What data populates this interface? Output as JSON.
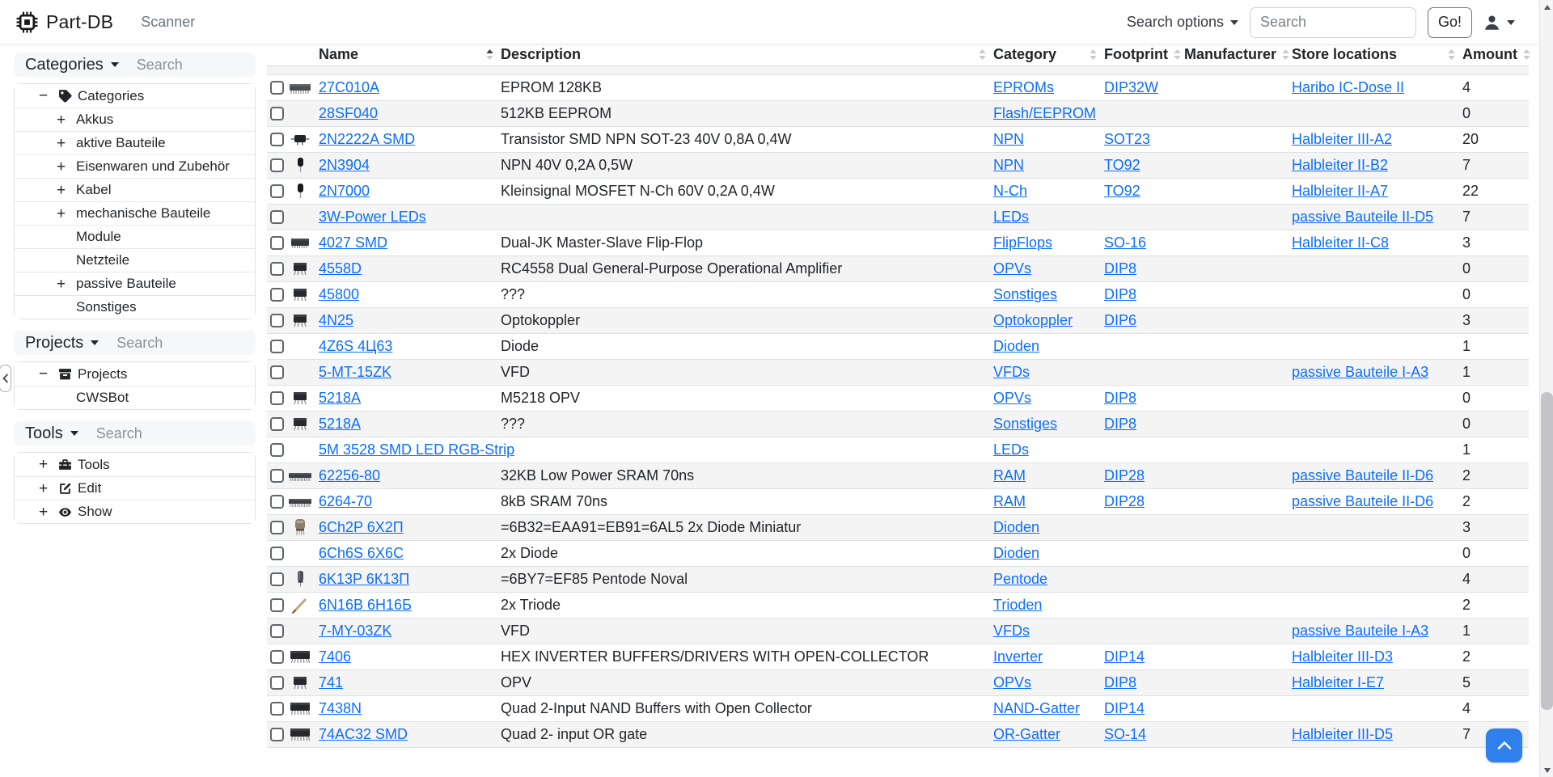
{
  "navbar": {
    "brand": "Part-DB",
    "nav_links": [
      "Scanner"
    ],
    "search_options_label": "Search options",
    "search_placeholder": "Search",
    "go_button": "Go!"
  },
  "sidebar": {
    "sections": [
      {
        "title": "Categories",
        "search_placeholder": "Search",
        "items": [
          {
            "label": "Categories",
            "depth": 0,
            "expander": "−",
            "icon": "tag-icon"
          },
          {
            "label": "Akkus",
            "depth": 1,
            "expander": "+"
          },
          {
            "label": "aktive Bauteile",
            "depth": 1,
            "expander": "+"
          },
          {
            "label": "Eisenwaren und Zubehör",
            "depth": 1,
            "expander": "+"
          },
          {
            "label": "Kabel",
            "depth": 1,
            "expander": "+"
          },
          {
            "label": "mechanische Bauteile",
            "depth": 1,
            "expander": "+"
          },
          {
            "label": "Module",
            "depth": 1,
            "expander": ""
          },
          {
            "label": "Netzteile",
            "depth": 1,
            "expander": ""
          },
          {
            "label": "passive Bauteile",
            "depth": 1,
            "expander": "+"
          },
          {
            "label": "Sonstiges",
            "depth": 1,
            "expander": ""
          }
        ]
      },
      {
        "title": "Projects",
        "search_placeholder": "Search",
        "items": [
          {
            "label": "Projects",
            "depth": 0,
            "expander": "−",
            "icon": "archive-icon"
          },
          {
            "label": "CWSBot",
            "depth": 1,
            "expander": ""
          }
        ]
      },
      {
        "title": "Tools",
        "search_placeholder": "Search",
        "items": [
          {
            "label": "Tools",
            "depth": 0,
            "expander": "+",
            "icon": "toolbox-icon"
          },
          {
            "label": "Edit",
            "depth": 0,
            "expander": "+",
            "icon": "edit-icon"
          },
          {
            "label": "Show",
            "depth": 0,
            "expander": "+",
            "icon": "eye-icon"
          }
        ]
      }
    ]
  },
  "table": {
    "columns": [
      "Name",
      "Description",
      "Category",
      "Footprint",
      "Manufacturer",
      "Store locations",
      "Amount"
    ],
    "sort": {
      "active_column": "Name",
      "direction": "ascending"
    },
    "rows": [
      {
        "image": "ic-side-icon",
        "name": "27C010A",
        "description": "EPROM 128KB",
        "category": "EPROMs",
        "footprint": "DIP32W",
        "manufacturer": "",
        "store_location": "Haribo IC-Dose II",
        "amount": "4"
      },
      {
        "image": "",
        "name": "28SF040",
        "description": "512KB EEPROM",
        "category": "Flash/EEPROM",
        "footprint": "",
        "manufacturer": "",
        "store_location": "",
        "amount": "0"
      },
      {
        "image": "sot23-icon",
        "name": "2N2222A SMD",
        "description": "Transistor SMD NPN SOT-23 40V 0,8A 0,4W",
        "category": "NPN",
        "footprint": "SOT23",
        "manufacturer": "",
        "store_location": "Halbleiter III-A2",
        "amount": "20"
      },
      {
        "image": "to92-icon",
        "name": "2N3904",
        "description": "NPN 40V 0,2A 0,5W",
        "category": "NPN",
        "footprint": "TO92",
        "manufacturer": "",
        "store_location": "Halbleiter II-B2",
        "amount": "7"
      },
      {
        "image": "to92-icon",
        "name": "2N7000",
        "description": "Kleinsignal MOSFET N-Ch 60V 0,2A 0,4W",
        "category": "N-Ch",
        "footprint": "TO92",
        "manufacturer": "",
        "store_location": "Halbleiter II-A7",
        "amount": "22"
      },
      {
        "image": "",
        "name": "3W-Power LEDs",
        "description": "",
        "category": "LEDs",
        "footprint": "",
        "manufacturer": "",
        "store_location": "passive Bauteile II-D5",
        "amount": "7"
      },
      {
        "image": "so16-icon",
        "name": "4027 SMD",
        "description": "Dual-JK Master-Slave Flip-Flop",
        "category": "FlipFlops",
        "footprint": "SO-16",
        "manufacturer": "",
        "store_location": "Halbleiter II-C8",
        "amount": "3"
      },
      {
        "image": "dip8-icon",
        "name": "4558D",
        "description": "RC4558 Dual General-Purpose Operational Amplifier",
        "category": "OPVs",
        "footprint": "DIP8",
        "manufacturer": "",
        "store_location": "",
        "amount": "0"
      },
      {
        "image": "dip8-icon",
        "name": "45800",
        "description": "???",
        "category": "Sonstiges",
        "footprint": "DIP8",
        "manufacturer": "",
        "store_location": "",
        "amount": "0"
      },
      {
        "image": "dip8-icon",
        "name": "4N25",
        "description": "Optokoppler",
        "category": "Optokoppler",
        "footprint": "DIP6",
        "manufacturer": "",
        "store_location": "",
        "amount": "3"
      },
      {
        "image": "",
        "name": "4Z6S 4Ц63",
        "description": "Diode",
        "category": "Dioden",
        "footprint": "",
        "manufacturer": "",
        "store_location": "",
        "amount": "1"
      },
      {
        "image": "",
        "name": "5-MT-15ZK",
        "description": "VFD",
        "category": "VFDs",
        "footprint": "",
        "manufacturer": "",
        "store_location": "passive Bauteile I-A3",
        "amount": "1"
      },
      {
        "image": "dip8-icon",
        "name": "5218A",
        "description": "M5218 OPV",
        "category": "OPVs",
        "footprint": "DIP8",
        "manufacturer": "",
        "store_location": "",
        "amount": "0"
      },
      {
        "image": "dip8-icon",
        "name": "5218A",
        "description": "???",
        "category": "Sonstiges",
        "footprint": "DIP8",
        "manufacturer": "",
        "store_location": "",
        "amount": "0"
      },
      {
        "image": "",
        "name": "5M 3528 SMD LED RGB-Strip",
        "description": "",
        "category": "LEDs",
        "footprint": "",
        "manufacturer": "",
        "store_location": "",
        "amount": "1"
      },
      {
        "image": "dip-long-icon",
        "name": "62256-80",
        "description": "32KB Low Power SRAM 70ns",
        "category": "RAM",
        "footprint": "DIP28",
        "manufacturer": "",
        "store_location": "passive Bauteile II-D6",
        "amount": "2"
      },
      {
        "image": "dip-long-icon",
        "name": "6264-70",
        "description": "8kB SRAM 70ns",
        "category": "RAM",
        "footprint": "DIP28",
        "manufacturer": "",
        "store_location": "passive Bauteile II-D6",
        "amount": "2"
      },
      {
        "image": "tube-large-icon",
        "name": "6Ch2P 6Х2П",
        "description": "=6B32=EAA91=EB91=6AL5 2x Diode Miniatur",
        "category": "Dioden",
        "footprint": "",
        "manufacturer": "",
        "store_location": "",
        "amount": "3"
      },
      {
        "image": "",
        "name": "6Ch6S 6Х6С",
        "description": "2x Diode",
        "category": "Dioden",
        "footprint": "",
        "manufacturer": "",
        "store_location": "",
        "amount": "0"
      },
      {
        "image": "tube-icon",
        "name": "6K13P 6К13П",
        "description": "=6BY7=EF85 Pentode Noval",
        "category": "Pentode",
        "footprint": "",
        "manufacturer": "",
        "store_location": "",
        "amount": "4"
      },
      {
        "image": "tube-small-icon",
        "name": "6N16B 6Н16Б",
        "description": "2x Triode",
        "category": "Trioden",
        "footprint": "",
        "manufacturer": "",
        "store_location": "",
        "amount": "2"
      },
      {
        "image": "",
        "name": "7-MY-03ZK",
        "description": "VFD",
        "category": "VFDs",
        "footprint": "",
        "manufacturer": "",
        "store_location": "passive Bauteile I-A3",
        "amount": "1"
      },
      {
        "image": "dip14-icon",
        "name": "7406",
        "description": "HEX INVERTER BUFFERS/DRIVERS WITH OPEN-COLLECTOR",
        "category": "Inverter",
        "footprint": "DIP14",
        "manufacturer": "",
        "store_location": "Halbleiter III-D3",
        "amount": "2"
      },
      {
        "image": "dip8-icon",
        "name": "741",
        "description": "OPV",
        "category": "OPVs",
        "footprint": "DIP8",
        "manufacturer": "",
        "store_location": "Halbleiter I-E7",
        "amount": "5"
      },
      {
        "image": "dip14-icon",
        "name": "7438N",
        "description": "Quad 2-Input NAND Buffers with Open Collector",
        "category": "NAND-Gatter",
        "footprint": "DIP14",
        "manufacturer": "",
        "store_location": "",
        "amount": "4"
      },
      {
        "image": "dip14-icon",
        "name": "74AC32 SMD",
        "description": "Quad 2- input OR gate",
        "category": "OR-Gatter",
        "footprint": "SO-14",
        "manufacturer": "",
        "store_location": "Halbleiter III-D5",
        "amount": "7"
      }
    ]
  },
  "scroll_top_button": {
    "icon": "chevron-up-icon"
  },
  "colors": {
    "link": "#0d6efd",
    "scroll_button": "#2f80ed",
    "row_stripe": "#f4f4f5"
  }
}
